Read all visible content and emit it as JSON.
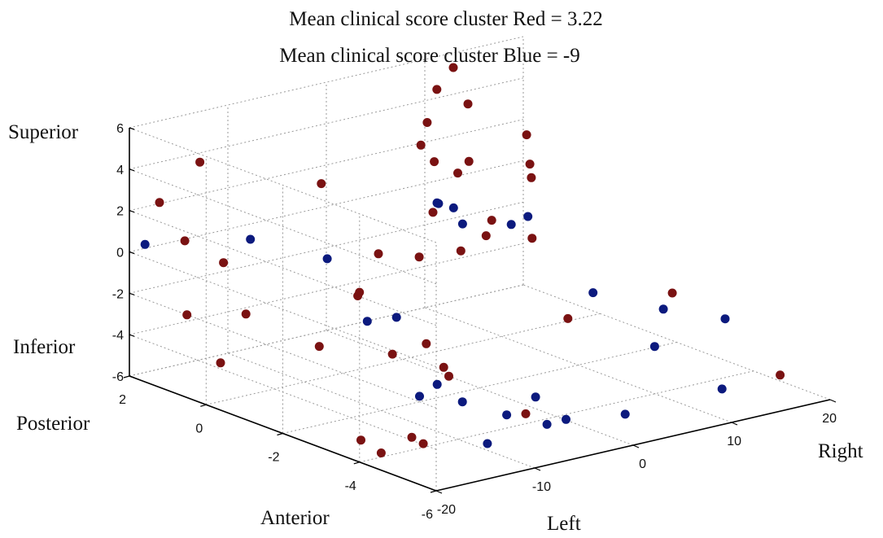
{
  "chart_data": {
    "type": "scatter",
    "title_lines": [
      "Mean clinical score cluster Red = 3.22",
      "Mean clinical score cluster Blue = -9"
    ],
    "axis_direction_labels": {
      "z_high": "Superior",
      "z_low": "Inferior",
      "y_high": "Posterior",
      "y_low": "Anterior",
      "x_low": "Left",
      "x_high": "Right"
    },
    "xlim": [
      -20,
      20
    ],
    "ylim": [
      -6,
      2
    ],
    "zlim": [
      -6,
      6
    ],
    "x_ticks": [
      "-20",
      "-10",
      "0",
      "10",
      "20"
    ],
    "y_ticks": [
      "2",
      "0",
      "-2",
      "-4",
      "-6"
    ],
    "z_ticks": [
      "6",
      "4",
      "2",
      "0",
      "-2",
      "-4",
      "-6"
    ],
    "grid": true,
    "colors": {
      "red": "#7a1212",
      "blue": "#0c1a7e"
    },
    "series": [
      {
        "color": "#7a1212",
        "points": [
          [
            -18.5,
            1.6,
            2.5
          ],
          [
            -14.4,
            1.6,
            4.0
          ],
          [
            -17.1,
            1.3,
            0.7
          ],
          [
            -15.9,
            0.6,
            0.0
          ],
          [
            -20.0,
            0.5,
            -2.0
          ],
          [
            -17.9,
            -0.5,
            -1.5
          ],
          [
            -19.7,
            -0.3,
            -3.8
          ],
          [
            -16.3,
            -2.0,
            -2.2
          ],
          [
            -12.0,
            -1.9,
            -0.3
          ],
          [
            -16.5,
            -3.1,
            1.2
          ],
          [
            -15.1,
            -3.6,
            -1.6
          ],
          [
            -14.0,
            -4.2,
            -0.8
          ],
          [
            -13.4,
            -4.5,
            -1.8
          ],
          [
            -8.3,
            0.0,
            3.4
          ],
          [
            -9.9,
            -1.9,
            1.5
          ],
          [
            -15.6,
            -5.2,
            -1.5
          ],
          [
            -18.3,
            -3.6,
            -5.4
          ],
          [
            -14.3,
            -4.2,
            -5.6
          ],
          [
            -17.8,
            -4.0,
            -5.8
          ],
          [
            -3.9,
            -4.2,
            -5.3
          ],
          [
            -14.3,
            -3.9,
            -5.5
          ],
          [
            14.5,
            0.5,
            2.9
          ],
          [
            12.5,
            1.9,
            5.4
          ],
          [
            8.5,
            1.3,
            5.2
          ],
          [
            10.1,
            0.9,
            4.6
          ],
          [
            7.9,
            1.4,
            3.6
          ],
          [
            9.4,
            1.6,
            1.4
          ],
          [
            9.6,
            2.0,
            1.9
          ],
          [
            11.4,
            1.5,
            0.7
          ],
          [
            13.7,
            1.8,
            0.8
          ],
          [
            19.5,
            1.7,
            0.1
          ],
          [
            14.2,
            0.3,
            1.0
          ],
          [
            8.1,
            1.3,
            -0.7
          ],
          [
            12.9,
            1.0,
            -1.4
          ],
          [
            6.7,
            1.3,
            -2.7
          ],
          [
            13.1,
            0.0,
            -1.6
          ],
          [
            9.6,
            0.3,
            -1.3
          ],
          [
            8.6,
            0.7,
            -2.2
          ],
          [
            10.9,
            -1.5,
            -4.2
          ],
          [
            14.1,
            -3.4,
            -2.0
          ],
          [
            19.6,
            -4.8,
            -5.6
          ]
        ]
      },
      {
        "color": "#0c1a7e",
        "points": [
          [
            -18.8,
            1.9,
            0.3
          ],
          [
            -15.5,
            0.0,
            1.5
          ],
          [
            -7.7,
            0.0,
            -0.3
          ],
          [
            -10.4,
            -2.5,
            -1.1
          ],
          [
            -12.5,
            -4.1,
            -3.0
          ],
          [
            -7.6,
            -3.5,
            -4.8
          ],
          [
            -12.2,
            -2.2,
            -1.3
          ],
          [
            -10.4,
            -3.1,
            -4.5
          ],
          [
            -11.3,
            -5.1,
            -5.3
          ],
          [
            -7.0,
            -4.5,
            -4.8
          ],
          [
            -1.2,
            -6.1,
            -4.3
          ],
          [
            7.5,
            1.0,
            0.0
          ],
          [
            8.9,
            1.4,
            -0.4
          ],
          [
            9.8,
            1.2,
            -0.6
          ],
          [
            11.5,
            1.4,
            -1.7
          ],
          [
            14.1,
            0.8,
            -1.6
          ],
          [
            15.8,
            0.8,
            -1.4
          ],
          [
            18.9,
            -0.1,
            -4.8
          ],
          [
            20.2,
            -1.6,
            -4.7
          ],
          [
            18.3,
            -3.7,
            -3.5
          ],
          [
            12.7,
            -3.3,
            -4.5
          ],
          [
            9.8,
            -5.8,
            -4.5
          ],
          [
            -2.9,
            -4.2,
            -4.6
          ],
          [
            -3.7,
            -5.2,
            -4.9
          ],
          [
            -3.3,
            -4.6,
            -5.6
          ]
        ]
      }
    ]
  }
}
